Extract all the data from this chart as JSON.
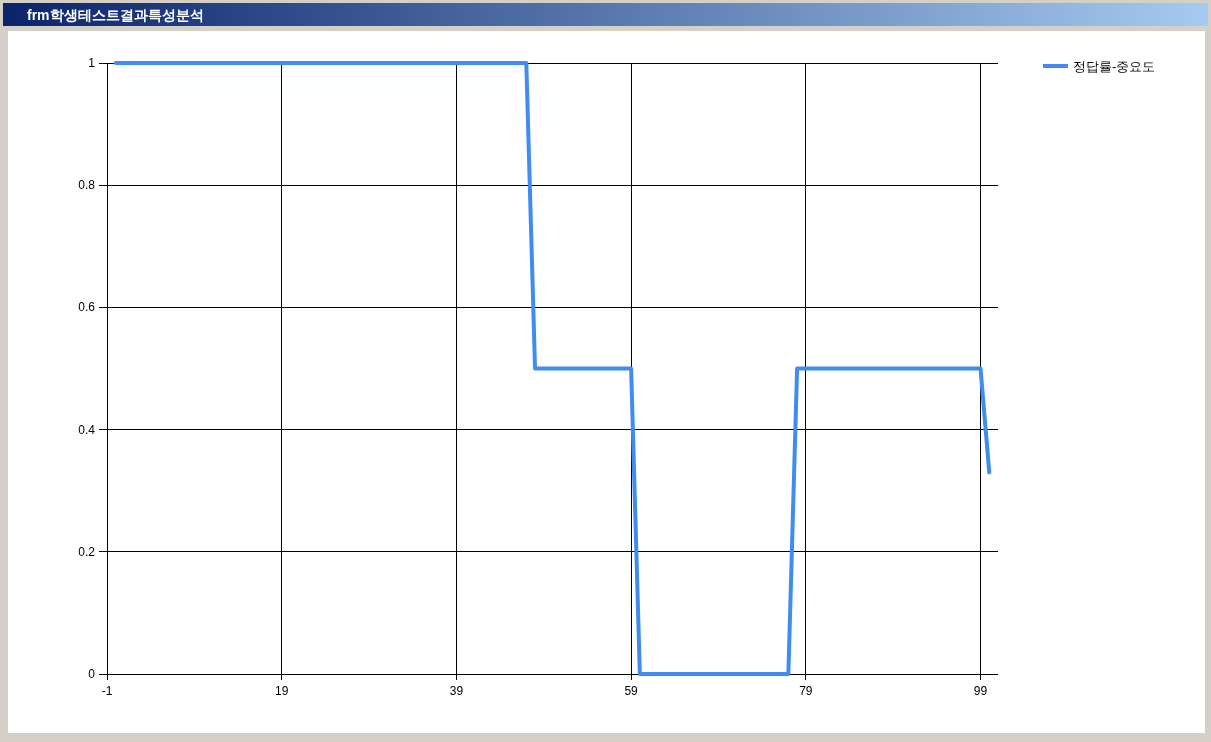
{
  "chart_data": {
    "type": "line",
    "title": "frm학생테스트결과특성분석",
    "x": [
      0,
      47,
      48,
      59,
      60,
      77,
      78,
      99,
      100
    ],
    "series": [
      {
        "name": "정답률-중요도",
        "color": "#418cf0",
        "values": [
          1,
          1,
          0.5,
          0.5,
          0,
          0,
          0.5,
          0.5,
          0.33
        ]
      }
    ],
    "xlim": [
      -1,
      101
    ],
    "xticks": [
      -1,
      19,
      39,
      59,
      79,
      99
    ],
    "ylim": [
      0,
      1
    ],
    "yticks": [
      0,
      0.2,
      0.4,
      0.6,
      0.8,
      1
    ],
    "grid": true,
    "legend": "top right",
    "line_style": "solid"
  }
}
